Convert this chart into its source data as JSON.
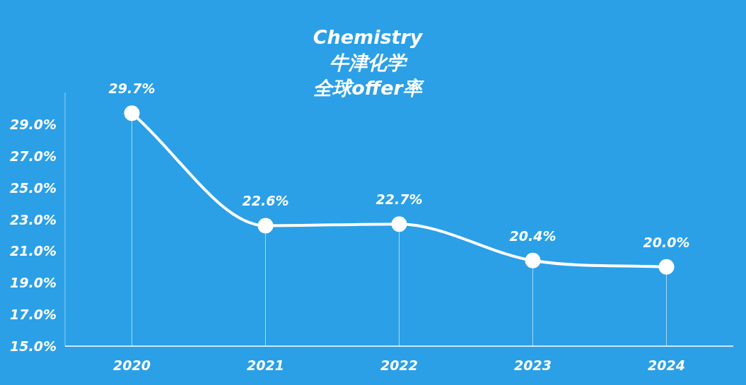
{
  "chart_data": {
    "type": "line",
    "title": "Chemistry",
    "subtitle": "牛津化学",
    "annotations": [
      "全球offer率"
    ],
    "categories": [
      "2020",
      "2021",
      "2022",
      "2023",
      "2024"
    ],
    "series": [
      {
        "color": "#ffffff",
        "values": [
          29.7,
          22.6,
          22.7,
          20.4,
          20.0
        ],
        "value_labels": [
          "29.7%",
          "22.6%",
          "22.7%",
          "20.4%",
          "20.0%"
        ]
      }
    ],
    "ylim": [
      15,
      31
    ],
    "yticks": [
      {
        "value": 15,
        "label": "15.0%"
      },
      {
        "value": 17,
        "label": "17.0%"
      },
      {
        "value": 19,
        "label": "19.0%"
      },
      {
        "value": 21,
        "label": "21.0%"
      },
      {
        "value": 23,
        "label": "23.0%"
      },
      {
        "value": 25,
        "label": "25.0%"
      },
      {
        "value": 27,
        "label": "27.0%"
      },
      {
        "value": 29,
        "label": "29.0%"
      }
    ],
    "grid": "x",
    "marker": "circle",
    "line_style": "solid"
  }
}
